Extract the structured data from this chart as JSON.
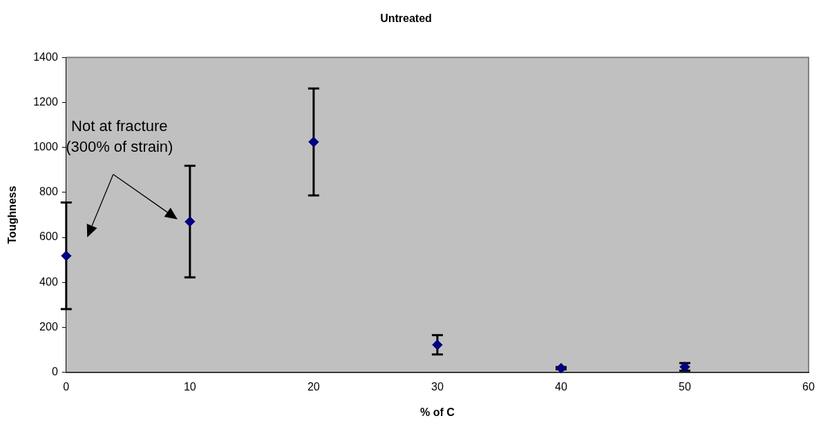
{
  "chart_data": {
    "type": "scatter",
    "title": "Untreated",
    "xlabel": "% of C",
    "ylabel": "Toughness",
    "x": [
      0,
      10,
      20,
      30,
      40,
      50
    ],
    "values": [
      518,
      670,
      1024,
      122,
      18,
      24
    ],
    "errors": [
      237,
      248,
      238,
      43,
      5,
      17
    ],
    "color": "#000080",
    "marker": "diamond",
    "grid": false,
    "legend": false,
    "xlim": [
      0,
      60
    ],
    "xticks": [
      0,
      10,
      20,
      30,
      40,
      50,
      60
    ],
    "ylim": [
      0,
      1400
    ],
    "yticks": [
      0,
      200,
      400,
      600,
      800,
      1000,
      1200,
      1400
    ],
    "annotations": [
      "Not at fracture\n(300% of strain)"
    ]
  }
}
